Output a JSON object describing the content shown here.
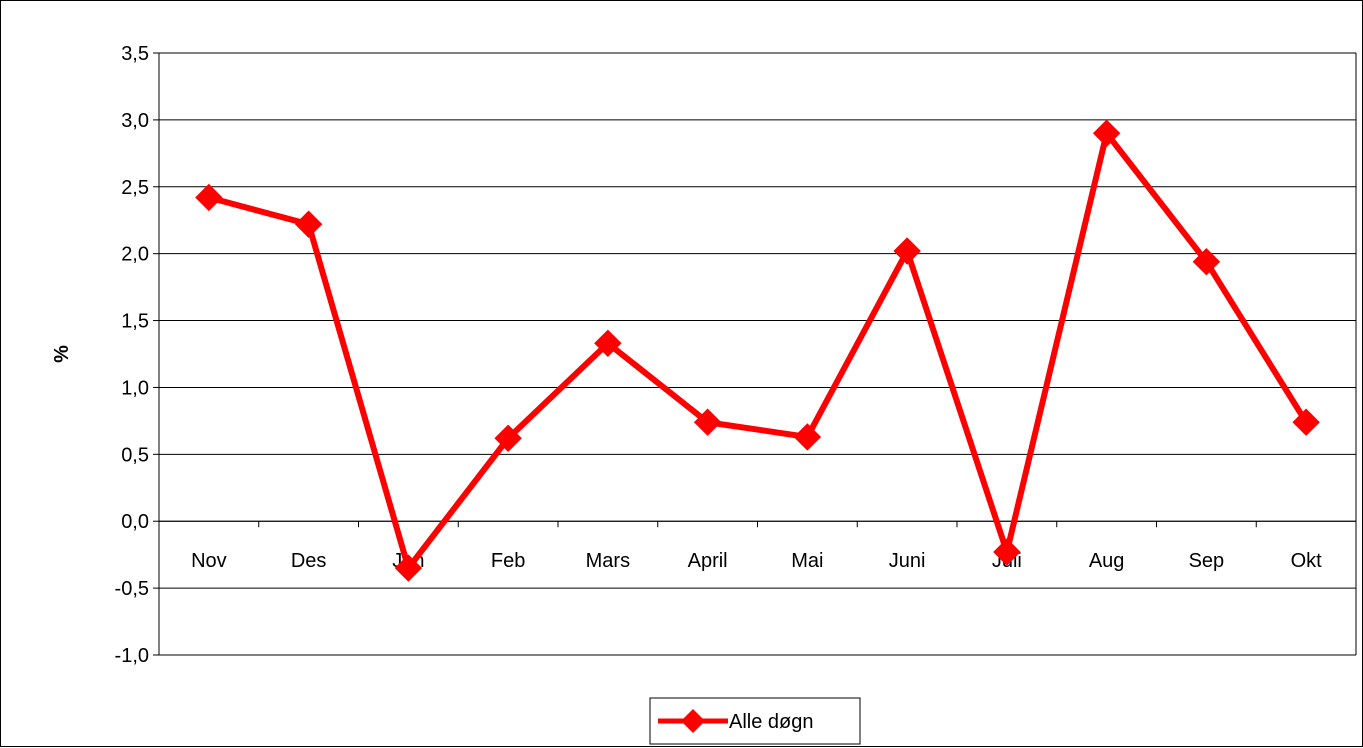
{
  "chart_data": {
    "type": "line",
    "title": "",
    "xlabel": "",
    "ylabel": "%",
    "ylim": [
      -1.0,
      3.5
    ],
    "ytick_step": 0.5,
    "yticks": [
      "-1,0",
      "-0,5",
      "0,0",
      "0,5",
      "1,0",
      "1,5",
      "2,0",
      "2,5",
      "3,0",
      "3,5"
    ],
    "categories": [
      "Nov",
      "Des",
      "Jan",
      "Feb",
      "Mars",
      "April",
      "Mai",
      "Juni",
      "Juli",
      "Aug",
      "Sep",
      "Okt"
    ],
    "series": [
      {
        "name": "Alle døgn",
        "color": "#ff0000",
        "marker": "diamond",
        "values": [
          2.42,
          2.22,
          -0.35,
          0.62,
          1.33,
          0.74,
          0.63,
          2.02,
          -0.23,
          2.9,
          1.94,
          0.74
        ]
      }
    ],
    "grid": true,
    "legend_position": "bottom-center"
  }
}
